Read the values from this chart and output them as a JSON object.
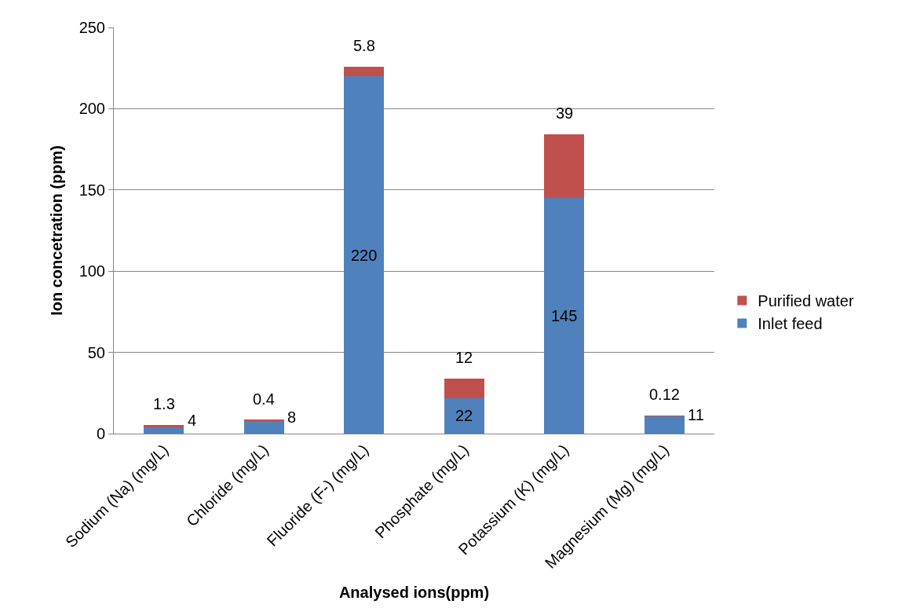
{
  "chart_data": {
    "type": "bar",
    "stacked": true,
    "xlabel": "Analysed ions(ppm)",
    "ylabel": "Ion concetration (ppm)",
    "categories": [
      "Sodium (Na) (mg/L)",
      "Chloride (mg/L)",
      "Fluoride (F-) (mg/L)",
      "Phosphate (mg/L)",
      "Potassium (K) (mg/L)",
      "Magnesium (Mg) (mg/L)"
    ],
    "series": [
      {
        "name": "Inlet feed",
        "color": "#4f81bd",
        "values": [
          4,
          8,
          220,
          22,
          145,
          11
        ]
      },
      {
        "name": "Purified water",
        "color": "#c0504d",
        "values": [
          1.3,
          0.4,
          5.8,
          12,
          39,
          0.12
        ]
      }
    ],
    "ylim": [
      0,
      250
    ],
    "yticks": [
      0,
      50,
      100,
      150,
      200,
      250
    ],
    "grid": "y",
    "legend": "right",
    "data_labels": true
  }
}
